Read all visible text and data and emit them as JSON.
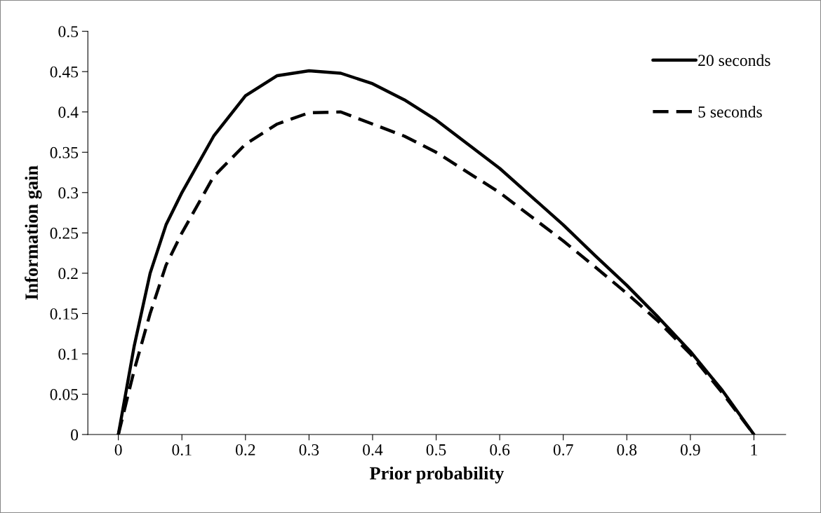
{
  "chart_data": {
    "type": "line",
    "xlabel": "Prior probability",
    "ylabel": "Information gain",
    "xlim": [
      -0.048,
      1.05
    ],
    "ylim": [
      0,
      0.5
    ],
    "xticks": [
      0,
      0.1,
      0.2,
      0.3,
      0.4,
      0.5,
      0.6,
      0.7,
      0.8,
      0.9,
      1
    ],
    "yticks": [
      0,
      0.05,
      0.1,
      0.15,
      0.2,
      0.25,
      0.3,
      0.35,
      0.4,
      0.45,
      0.5
    ],
    "grid": false,
    "legend": "top right",
    "marker": "none",
    "x": [
      0,
      0.025,
      0.05,
      0.075,
      0.1,
      0.15,
      0.2,
      0.25,
      0.3,
      0.35,
      0.4,
      0.45,
      0.5,
      0.55,
      0.6,
      0.65,
      0.7,
      0.75,
      0.8,
      0.85,
      0.9,
      0.95,
      1
    ],
    "series": [
      {
        "name": "20 seconds",
        "color": "#000000",
        "line_style": "solid",
        "values": [
          0,
          0.11,
          0.2,
          0.26,
          0.3,
          0.37,
          0.42,
          0.445,
          0.451,
          0.448,
          0.435,
          0.415,
          0.39,
          0.36,
          0.33,
          0.295,
          0.26,
          0.222,
          0.185,
          0.145,
          0.103,
          0.055,
          0
        ]
      },
      {
        "name": "5 seconds",
        "color": "#000000",
        "line_style": "dashed",
        "values": [
          0,
          0.08,
          0.15,
          0.21,
          0.25,
          0.32,
          0.36,
          0.385,
          0.399,
          0.4,
          0.385,
          0.37,
          0.35,
          0.325,
          0.3,
          0.27,
          0.24,
          0.208,
          0.175,
          0.14,
          0.1,
          0.052,
          0
        ]
      }
    ]
  }
}
